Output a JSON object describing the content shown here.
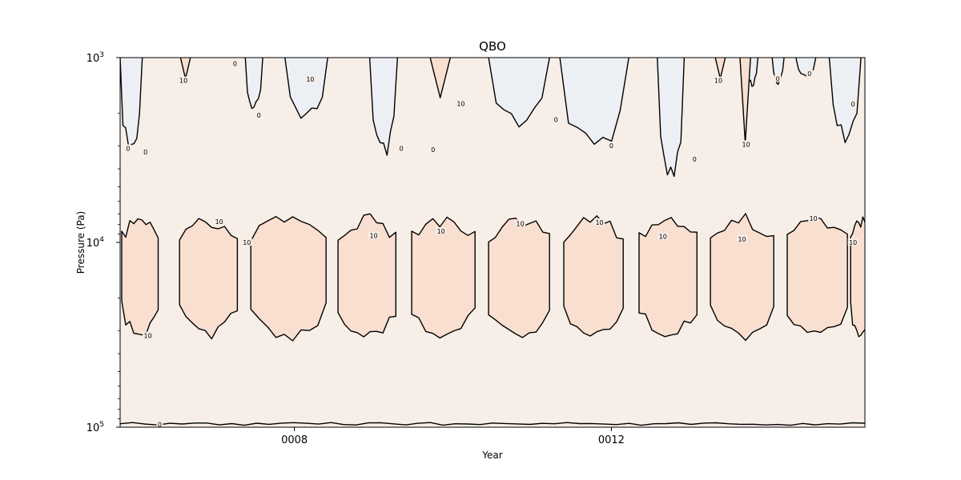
{
  "chart_data": {
    "type": "heatmap",
    "title": "QBO",
    "xlabel": "Year",
    "ylabel": "Pressure (Pa)",
    "y_scale": "log",
    "y_inverted": true,
    "xlim": [
      5.8,
      15.2
    ],
    "ylim": [
      1000,
      100000
    ],
    "x_ticks": [
      {
        "value": 8,
        "label": "0008"
      },
      {
        "value": 12,
        "label": "0012"
      }
    ],
    "y_ticks": [
      {
        "value": 1000,
        "base": "10",
        "exp": "3"
      },
      {
        "value": 10000,
        "base": "10",
        "exp": "4"
      },
      {
        "value": 100000,
        "base": "10",
        "exp": "5"
      }
    ],
    "grid": false,
    "contour_levels": [
      -10,
      0,
      10
    ],
    "fill_colors": {
      "below_0": "#ecf0f4",
      "0_to_10": "#f7eee8",
      "above_10": "#f9dfcf"
    },
    "contour_labels": [
      {
        "x": 5.9,
        "p": 3100,
        "label": "0"
      },
      {
        "x": 6.12,
        "p": 3250,
        "label": "0"
      },
      {
        "x": 6.6,
        "p": 1330,
        "label": "10"
      },
      {
        "x": 7.25,
        "p": 1080,
        "label": "0"
      },
      {
        "x": 7.55,
        "p": 2050,
        "label": "0"
      },
      {
        "x": 8.2,
        "p": 1310,
        "label": "10"
      },
      {
        "x": 9.35,
        "p": 3100,
        "label": "0"
      },
      {
        "x": 9.75,
        "p": 3150,
        "label": "0"
      },
      {
        "x": 10.1,
        "p": 1770,
        "label": "10"
      },
      {
        "x": 11.3,
        "p": 2160,
        "label": "0"
      },
      {
        "x": 12.0,
        "p": 3000,
        "label": "0"
      },
      {
        "x": 13.05,
        "p": 3550,
        "label": "0"
      },
      {
        "x": 13.35,
        "p": 1330,
        "label": "10"
      },
      {
        "x": 13.7,
        "p": 2950,
        "label": "10"
      },
      {
        "x": 14.1,
        "p": 1300,
        "label": "0"
      },
      {
        "x": 14.5,
        "p": 1220,
        "label": "0"
      },
      {
        "x": 15.05,
        "p": 1780,
        "label": "0"
      },
      {
        "x": 6.15,
        "p": 32000,
        "label": "10"
      },
      {
        "x": 7.05,
        "p": 7700,
        "label": "10"
      },
      {
        "x": 7.4,
        "p": 10000,
        "label": "10"
      },
      {
        "x": 9.0,
        "p": 9200,
        "label": "10"
      },
      {
        "x": 9.85,
        "p": 8700,
        "label": "10"
      },
      {
        "x": 10.85,
        "p": 7900,
        "label": "10"
      },
      {
        "x": 11.85,
        "p": 7800,
        "label": "10"
      },
      {
        "x": 12.65,
        "p": 9300,
        "label": "10"
      },
      {
        "x": 13.65,
        "p": 9600,
        "label": "10"
      },
      {
        "x": 14.55,
        "p": 7400,
        "label": "10"
      },
      {
        "x": 15.05,
        "p": 10000,
        "label": "10"
      },
      {
        "x": 6.3,
        "p": 96500,
        "label": "0"
      }
    ]
  }
}
